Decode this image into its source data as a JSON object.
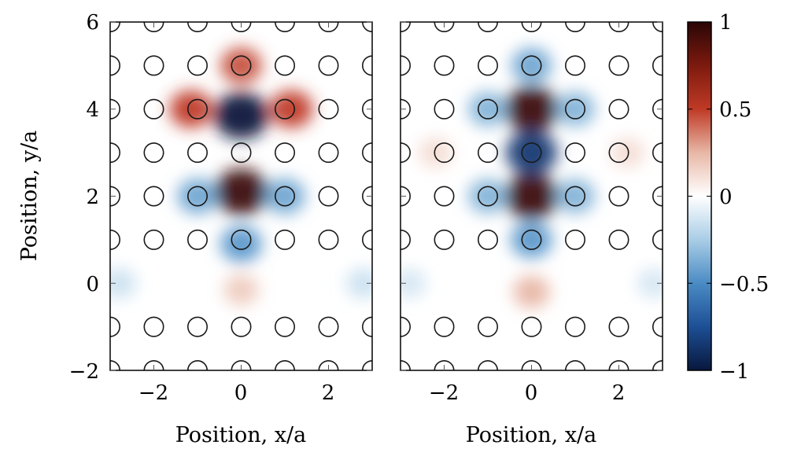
{
  "chart_data": [
    {
      "type": "heatmap",
      "panel": "left",
      "xlabel": "Position, x/a",
      "ylabel": "Position, y/a",
      "xlim": [
        -3,
        3
      ],
      "ylim": [
        -2,
        6
      ],
      "xticks": [
        "−2",
        "0",
        "2"
      ],
      "yticks": [
        "−2",
        "0",
        "2",
        "4",
        "6"
      ],
      "field_peaks": [
        {
          "x": 0,
          "y": 3.85,
          "value": -1.0
        },
        {
          "x": 0,
          "y": 2.1,
          "value": 0.95
        },
        {
          "x": 0,
          "y": 5.0,
          "value": 0.45
        },
        {
          "x": -1.15,
          "y": 4.0,
          "value": 0.5
        },
        {
          "x": 1.15,
          "y": 4.0,
          "value": 0.5
        },
        {
          "x": -1.0,
          "y": 2.0,
          "value": -0.4
        },
        {
          "x": 1.0,
          "y": 2.0,
          "value": -0.4
        },
        {
          "x": 0,
          "y": 0.9,
          "value": -0.45
        },
        {
          "x": 0,
          "y": -0.15,
          "value": 0.18
        },
        {
          "x": -2.8,
          "y": 0.0,
          "value": -0.15
        },
        {
          "x": 2.8,
          "y": 0.0,
          "value": -0.15
        }
      ],
      "rods": [
        [
          -3,
          -2
        ],
        [
          -2,
          -2
        ],
        [
          -1,
          -2
        ],
        [
          0,
          -2
        ],
        [
          1,
          -2
        ],
        [
          2,
          -2
        ],
        [
          3,
          -2
        ],
        [
          -3,
          -1
        ],
        [
          -2,
          -1
        ],
        [
          -1,
          -1
        ],
        [
          0,
          -1
        ],
        [
          1,
          -1
        ],
        [
          2,
          -1
        ],
        [
          3,
          -1
        ],
        [
          -3,
          1
        ],
        [
          -2,
          1
        ],
        [
          -1,
          1
        ],
        [
          0,
          1
        ],
        [
          1,
          1
        ],
        [
          2,
          1
        ],
        [
          3,
          1
        ],
        [
          -3,
          2
        ],
        [
          -2,
          2
        ],
        [
          -1,
          2
        ],
        [
          1,
          2
        ],
        [
          2,
          2
        ],
        [
          3,
          2
        ],
        [
          -3,
          3
        ],
        [
          -2,
          3
        ],
        [
          -1,
          3
        ],
        [
          0,
          3
        ],
        [
          1,
          3
        ],
        [
          2,
          3
        ],
        [
          3,
          3
        ],
        [
          -3,
          4
        ],
        [
          -2,
          4
        ],
        [
          -1,
          4
        ],
        [
          1,
          4
        ],
        [
          2,
          4
        ],
        [
          3,
          4
        ],
        [
          -3,
          5
        ],
        [
          -2,
          5
        ],
        [
          -1,
          5
        ],
        [
          0,
          5
        ],
        [
          1,
          5
        ],
        [
          2,
          5
        ],
        [
          3,
          5
        ],
        [
          -3,
          6
        ],
        [
          -2,
          6
        ],
        [
          -1,
          6
        ],
        [
          0,
          6
        ],
        [
          1,
          6
        ],
        [
          2,
          6
        ],
        [
          3,
          6
        ]
      ]
    },
    {
      "type": "heatmap",
      "panel": "right",
      "xlabel": "Position, x/a",
      "ylabel": "",
      "xlim": [
        -3,
        3
      ],
      "ylim": [
        -2,
        6
      ],
      "xticks": [
        "−2",
        "0",
        "2"
      ],
      "yticks": [],
      "field_peaks": [
        {
          "x": 0,
          "y": 4.0,
          "value": 0.95
        },
        {
          "x": 0,
          "y": 2.0,
          "value": 0.95
        },
        {
          "x": 0,
          "y": 3.0,
          "value": -0.85
        },
        {
          "x": 0,
          "y": 5.0,
          "value": -0.4
        },
        {
          "x": 0,
          "y": 1.0,
          "value": -0.45
        },
        {
          "x": -1.0,
          "y": 2.0,
          "value": -0.35
        },
        {
          "x": 1.0,
          "y": 2.0,
          "value": -0.35
        },
        {
          "x": -1.0,
          "y": 4.0,
          "value": -0.35
        },
        {
          "x": 1.0,
          "y": 4.0,
          "value": -0.35
        },
        {
          "x": 0,
          "y": -0.2,
          "value": 0.25
        },
        {
          "x": -2.2,
          "y": 3.0,
          "value": 0.12
        },
        {
          "x": 2.2,
          "y": 3.0,
          "value": 0.12
        },
        {
          "x": -2.8,
          "y": 0.0,
          "value": -0.12
        },
        {
          "x": 2.8,
          "y": 0.0,
          "value": -0.12
        }
      ],
      "rods": [
        [
          -3,
          -2
        ],
        [
          -2,
          -2
        ],
        [
          -1,
          -2
        ],
        [
          0,
          -2
        ],
        [
          1,
          -2
        ],
        [
          2,
          -2
        ],
        [
          3,
          -2
        ],
        [
          -3,
          -1
        ],
        [
          -2,
          -1
        ],
        [
          -1,
          -1
        ],
        [
          0,
          -1
        ],
        [
          1,
          -1
        ],
        [
          2,
          -1
        ],
        [
          3,
          -1
        ],
        [
          -3,
          1
        ],
        [
          -2,
          1
        ],
        [
          -1,
          1
        ],
        [
          0,
          1
        ],
        [
          1,
          1
        ],
        [
          2,
          1
        ],
        [
          3,
          1
        ],
        [
          -3,
          2
        ],
        [
          -2,
          2
        ],
        [
          -1,
          2
        ],
        [
          1,
          2
        ],
        [
          2,
          2
        ],
        [
          3,
          2
        ],
        [
          -3,
          3
        ],
        [
          -2,
          3
        ],
        [
          -1,
          3
        ],
        [
          0,
          3
        ],
        [
          1,
          3
        ],
        [
          2,
          3
        ],
        [
          3,
          3
        ],
        [
          -3,
          4
        ],
        [
          -2,
          4
        ],
        [
          -1,
          4
        ],
        [
          1,
          4
        ],
        [
          2,
          4
        ],
        [
          3,
          4
        ],
        [
          -3,
          5
        ],
        [
          -2,
          5
        ],
        [
          -1,
          5
        ],
        [
          0,
          5
        ],
        [
          1,
          5
        ],
        [
          2,
          5
        ],
        [
          3,
          5
        ],
        [
          -3,
          6
        ],
        [
          -2,
          6
        ],
        [
          -1,
          6
        ],
        [
          0,
          6
        ],
        [
          1,
          6
        ],
        [
          2,
          6
        ],
        [
          3,
          6
        ]
      ]
    }
  ],
  "colorbar": {
    "min": -1,
    "max": 1,
    "ticks": [
      "−1",
      "−0.5",
      "0",
      "0.5",
      "1"
    ],
    "tick_values": [
      -1,
      -0.5,
      0,
      0.5,
      1
    ],
    "stops": [
      {
        "v": -1.0,
        "color": "#08183d"
      },
      {
        "v": -0.75,
        "color": "#1d4f95"
      },
      {
        "v": -0.5,
        "color": "#4a8bc4"
      },
      {
        "v": -0.25,
        "color": "#a9cde6"
      },
      {
        "v": 0.0,
        "color": "#ffffff"
      },
      {
        "v": 0.25,
        "color": "#e8b7a6"
      },
      {
        "v": 0.5,
        "color": "#bf3a26"
      },
      {
        "v": 0.75,
        "color": "#7d1a0e"
      },
      {
        "v": 1.0,
        "color": "#2a0606"
      }
    ]
  }
}
